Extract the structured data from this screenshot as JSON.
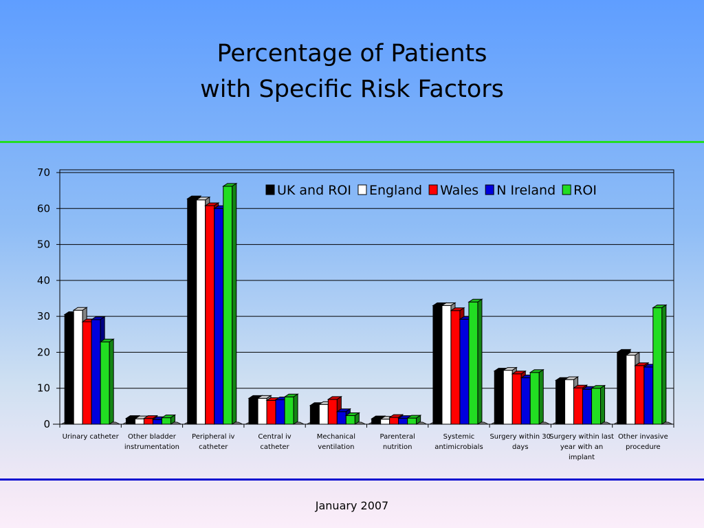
{
  "slide": {
    "title_line1": "Percentage of Patients",
    "title_line2": "with Specific Risk Factors",
    "footer": "January 2007"
  },
  "colors": {
    "UK and ROI": "#000000",
    "England": "#ffffff",
    "Wales": "#ff0000",
    "N Ireland": "#0000dd",
    "ROI": "#22dd22"
  },
  "chart_data": {
    "type": "bar",
    "legend_position": "top-right",
    "grid": true,
    "ylim": [
      0,
      70
    ],
    "yticks": [
      0,
      10,
      20,
      30,
      40,
      50,
      60,
      70
    ],
    "categories": [
      [
        "Urinary catheter"
      ],
      [
        "Other bladder",
        "instrumentation"
      ],
      [
        "Peripheral iv",
        "catheter"
      ],
      [
        "Central iv",
        "catheter"
      ],
      [
        "Mechanical",
        "ventilation"
      ],
      [
        "Parenteral",
        "nutrition"
      ],
      [
        "Systemic",
        "antimicrobials"
      ],
      [
        "Surgery within 30",
        "days"
      ],
      [
        "Surgery within last",
        "year with an",
        "implant"
      ],
      [
        "Other invasive",
        "procedure"
      ]
    ],
    "series": [
      {
        "name": "UK and ROI",
        "values": [
          30.5,
          1.6,
          62.7,
          7.2,
          5.2,
          1.5,
          33.0,
          14.8,
          12.2,
          20.0
        ]
      },
      {
        "name": "England",
        "values": [
          31.7,
          1.5,
          62.4,
          7.2,
          5.5,
          1.4,
          33.0,
          15.0,
          12.4,
          19.2
        ]
      },
      {
        "name": "Wales",
        "values": [
          28.5,
          1.6,
          60.8,
          6.6,
          6.9,
          1.9,
          31.6,
          14.0,
          10.1,
          16.3
        ]
      },
      {
        "name": "N Ireland",
        "values": [
          29.1,
          1.3,
          60.0,
          6.8,
          3.5,
          1.6,
          29.2,
          12.9,
          9.7,
          15.9
        ]
      },
      {
        "name": "ROI",
        "values": [
          22.9,
          1.8,
          66.2,
          7.6,
          2.4,
          1.7,
          34.0,
          14.4,
          10.0,
          32.4
        ]
      }
    ]
  }
}
